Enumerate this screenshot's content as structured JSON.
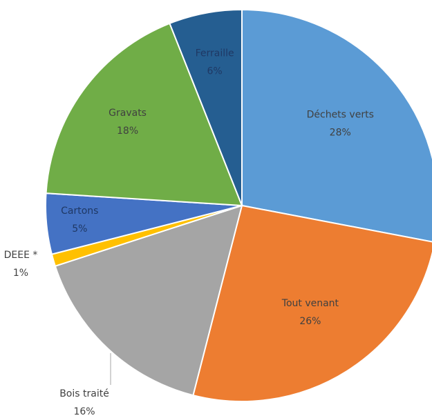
{
  "chart_data": {
    "type": "pie",
    "slices": [
      {
        "category": "Déchets verts",
        "value": 28,
        "label": "28%",
        "color": "#5B9BD5"
      },
      {
        "category": "Tout venant",
        "value": 26,
        "label": "26%",
        "color": "#ED7D31"
      },
      {
        "category": "Bois traité",
        "value": 16,
        "label": "16%",
        "color": "#A5A5A5"
      },
      {
        "category": "DEEE *",
        "value": 1,
        "label": "1%",
        "color": "#FFC000"
      },
      {
        "category": "Cartons",
        "value": 5,
        "label": "5%",
        "color": "#4472C4"
      },
      {
        "category": "Gravats",
        "value": 18,
        "label": "18%",
        "color": "#70AD47"
      },
      {
        "category": "Ferraille",
        "value": 6,
        "label": "6%",
        "color": "#255E91"
      }
    ],
    "label_color": "#404040"
  }
}
